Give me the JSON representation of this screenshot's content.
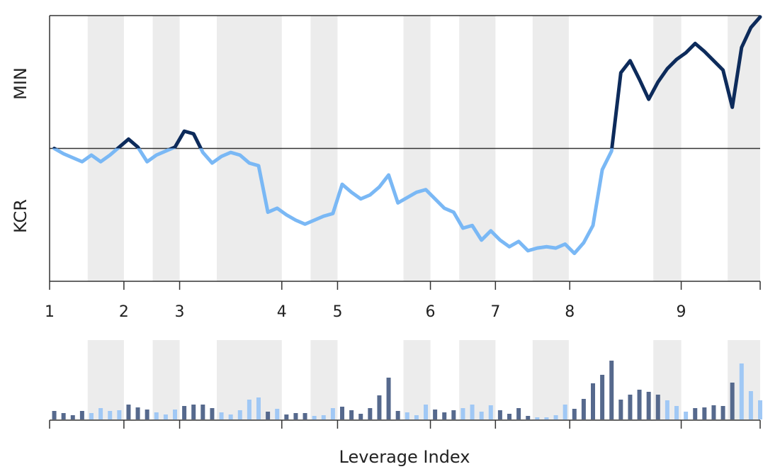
{
  "chart_data": [
    {
      "type": "line",
      "ylabel_top": "MIN",
      "ylabel_bottom": "KCR",
      "xlim": [
        -0.5,
        76
      ],
      "ylim": [
        -1,
        1
      ],
      "hline": 0,
      "xticks": [
        {
          "value": -0.5,
          "label": "1"
        },
        {
          "value": 7.5,
          "label": "2"
        },
        {
          "value": 13.5,
          "label": "3"
        },
        {
          "value": 24.5,
          "label": "4"
        },
        {
          "value": 30.5,
          "label": "5"
        },
        {
          "value": 40.5,
          "label": "6"
        },
        {
          "value": 47.5,
          "label": "7"
        },
        {
          "value": 55.5,
          "label": "8"
        },
        {
          "value": 67.5,
          "label": "9"
        }
      ],
      "shaded_ranges": [
        [
          3.6,
          7.5
        ],
        [
          10.6,
          13.5
        ],
        [
          17.5,
          24.5
        ],
        [
          27.6,
          30.5
        ],
        [
          37.6,
          40.5
        ],
        [
          43.6,
          47.5
        ],
        [
          51.5,
          55.4
        ],
        [
          64.5,
          67.5
        ],
        [
          72.5,
          76
        ]
      ],
      "color_above": "#0d2b5b",
      "color_below": "#7ab8f5",
      "shade_color": "#ececec",
      "values": [
        0,
        -0.04,
        -0.07,
        -0.1,
        -0.05,
        -0.1,
        -0.05,
        0.01,
        0.07,
        0.01,
        -0.1,
        -0.05,
        -0.02,
        0.01,
        0.13,
        0.11,
        -0.03,
        -0.11,
        -0.06,
        -0.03,
        -0.05,
        -0.11,
        -0.13,
        -0.48,
        -0.45,
        -0.5,
        -0.54,
        -0.57,
        -0.54,
        -0.51,
        -0.49,
        -0.27,
        -0.33,
        -0.38,
        -0.35,
        -0.29,
        -0.2,
        -0.41,
        -0.37,
        -0.33,
        -0.31,
        -0.38,
        -0.45,
        -0.48,
        -0.6,
        -0.58,
        -0.69,
        -0.62,
        -0.69,
        -0.74,
        -0.7,
        -0.77,
        -0.75,
        -0.74,
        -0.75,
        -0.72,
        -0.79,
        -0.71,
        -0.58,
        -0.16,
        -0.02,
        0.57,
        0.66,
        0.52,
        0.37,
        0.5,
        0.6,
        0.67,
        0.72,
        0.79,
        0.73,
        0.66,
        0.59,
        0.31,
        0.76,
        0.91,
        0.99
      ]
    },
    {
      "type": "bar",
      "xlabel": "Leverage Index",
      "ylim": [
        0,
        112
      ],
      "dark": "#56698d",
      "light": "#a0c8f5",
      "values": [
        12,
        9,
        6,
        12,
        9,
        16,
        12,
        13,
        21,
        17,
        14,
        10,
        7,
        14,
        19,
        21,
        21,
        16,
        10,
        7,
        13,
        28,
        31,
        11,
        15,
        7,
        9,
        9,
        5,
        6,
        16,
        18,
        13,
        8,
        16,
        34,
        59,
        12,
        10,
        6,
        21,
        14,
        10,
        13,
        16,
        21,
        11,
        20,
        13,
        8,
        16,
        5,
        3,
        3,
        6,
        21,
        15,
        29,
        51,
        63,
        83,
        28,
        35,
        42,
        39,
        35,
        27,
        19,
        11,
        16,
        17,
        20,
        19,
        52,
        79,
        40,
        27
      ],
      "shades": [
        "dark",
        "dark",
        "dark",
        "dark",
        "light",
        "light",
        "light",
        "light",
        "dark",
        "dark",
        "dark",
        "light",
        "light",
        "light",
        "dark",
        "dark",
        "dark",
        "dark",
        "light",
        "light",
        "light",
        "light",
        "light",
        "dark",
        "light",
        "dark",
        "dark",
        "dark",
        "light",
        "light",
        "light",
        "dark",
        "dark",
        "dark",
        "dark",
        "dark",
        "dark",
        "dark",
        "light",
        "light",
        "light",
        "dark",
        "dark",
        "dark",
        "light",
        "light",
        "light",
        "light",
        "dark",
        "dark",
        "dark",
        "dark",
        "light",
        "light",
        "light",
        "light",
        "dark",
        "dark",
        "dark",
        "dark",
        "dark",
        "dark",
        "dark",
        "dark",
        "dark",
        "dark",
        "light",
        "light",
        "light",
        "dark",
        "dark",
        "dark",
        "dark",
        "dark",
        "light",
        "light",
        "light"
      ]
    }
  ]
}
